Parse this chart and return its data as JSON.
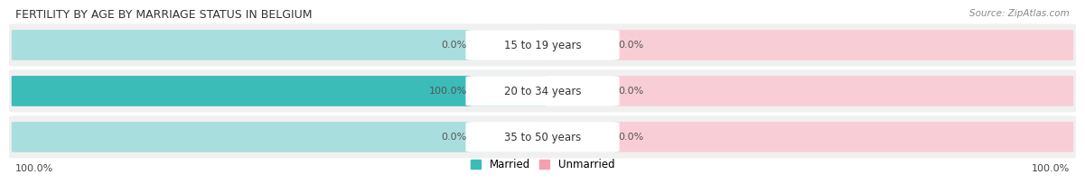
{
  "title": "FERTILITY BY AGE BY MARRIAGE STATUS IN BELGIUM",
  "source": "Source: ZipAtlas.com",
  "rows": [
    {
      "label": "15 to 19 years",
      "married": 0.0,
      "unmarried": 0.0
    },
    {
      "label": "20 to 34 years",
      "married": 100.0,
      "unmarried": 0.0
    },
    {
      "label": "35 to 50 years",
      "married": 0.0,
      "unmarried": 0.0
    }
  ],
  "married_color": "#3BBCB8",
  "married_light_color": "#A8DEDD",
  "unmarried_color": "#F4A0B0",
  "unmarried_light_color": "#F9CDD6",
  "row_bg_color": "#F0F0F0",
  "title_fontsize": 9,
  "source_fontsize": 7.5,
  "label_fontsize": 8.5,
  "pct_fontsize": 8,
  "tick_fontsize": 8,
  "legend_fontsize": 8.5,
  "left_axis_label": "100.0%",
  "right_axis_label": "100.0%",
  "fig_bg": "#FFFFFF"
}
